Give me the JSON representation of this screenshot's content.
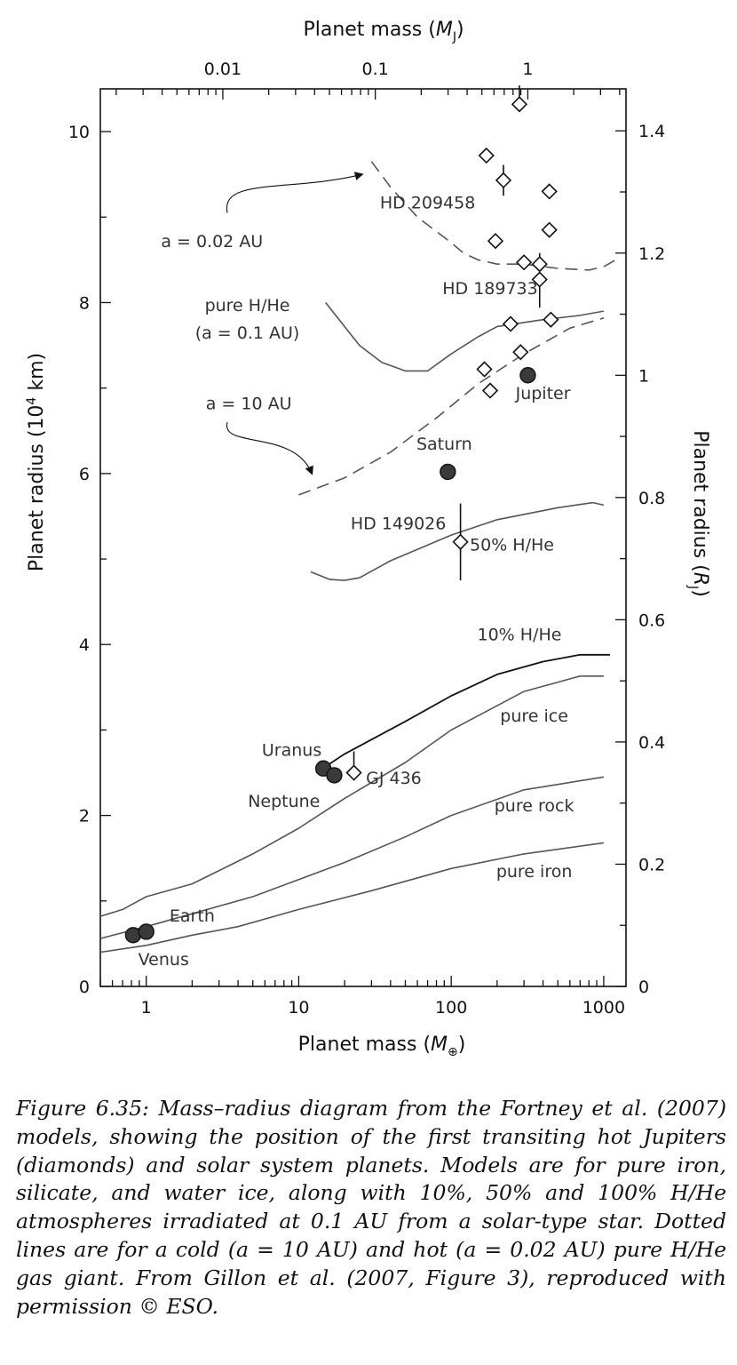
{
  "chart_data": {
    "type": "line",
    "xlabel_bottom_prefix": "Planet mass (",
    "xlabel_bottom_var": "M",
    "xlabel_bottom_sub": "⊕",
    "xlabel_bottom_suffix": ")",
    "xlabel_top_prefix": "Planet mass (",
    "xlabel_top_var": "M",
    "xlabel_top_sub": "J",
    "xlabel_top_suffix": ")",
    "ylabel_left_prefix": "Planet radius  (10",
    "ylabel_left_sup": "4",
    "ylabel_left_suffix": " km)",
    "ylabel_right_prefix": "Planet radius  (",
    "ylabel_right_var": "R",
    "ylabel_right_sub": "J",
    "ylabel_right_suffix": ")",
    "x_scale": "log",
    "xlim": [
      0.5,
      1400
    ],
    "ylim": [
      0,
      10.5
    ],
    "x_bottom_ticks": [
      {
        "v": 1,
        "label": "1"
      },
      {
        "v": 10,
        "label": "10"
      },
      {
        "v": 100,
        "label": "100"
      },
      {
        "v": 1000,
        "label": "1000"
      }
    ],
    "x_top_ticks": [
      {
        "mj": 0.01,
        "label": "0.01"
      },
      {
        "mj": 0.1,
        "label": "0.1"
      },
      {
        "mj": 1,
        "label": "1"
      }
    ],
    "y_left_ticks": [
      {
        "v": 0,
        "label": "0"
      },
      {
        "v": 2,
        "label": "2"
      },
      {
        "v": 4,
        "label": "4"
      },
      {
        "v": 6,
        "label": "6"
      },
      {
        "v": 8,
        "label": "8"
      },
      {
        "v": 10,
        "label": "10"
      }
    ],
    "y_right_ticks": [
      {
        "rj": 0,
        "label": "0"
      },
      {
        "rj": 0.2,
        "label": "0.2"
      },
      {
        "rj": 0.4,
        "label": "0.4"
      },
      {
        "rj": 0.6,
        "label": "0.6"
      },
      {
        "rj": 0.8,
        "label": "0.8"
      },
      {
        "rj": 1,
        "label": "1"
      },
      {
        "rj": 1.2,
        "label": "1.2"
      },
      {
        "rj": 1.4,
        "label": "1.4"
      }
    ],
    "series": [
      {
        "name": "pure iron",
        "style": "solid",
        "color": "#555555",
        "points": [
          [
            0.5,
            0.4
          ],
          [
            1,
            0.48
          ],
          [
            2,
            0.6
          ],
          [
            4,
            0.7
          ],
          [
            10,
            0.9
          ],
          [
            30,
            1.12
          ],
          [
            100,
            1.38
          ],
          [
            300,
            1.55
          ],
          [
            1000,
            1.68
          ]
        ]
      },
      {
        "name": "pure rock",
        "style": "solid",
        "color": "#555555",
        "points": [
          [
            0.5,
            0.56
          ],
          [
            1,
            0.7
          ],
          [
            2,
            0.85
          ],
          [
            5,
            1.05
          ],
          [
            10,
            1.25
          ],
          [
            20,
            1.45
          ],
          [
            50,
            1.75
          ],
          [
            100,
            2.0
          ],
          [
            300,
            2.3
          ],
          [
            1000,
            2.45
          ]
        ]
      },
      {
        "name": "pure ice",
        "style": "solid",
        "color": "#555555",
        "points": [
          [
            0.5,
            0.82
          ],
          [
            0.7,
            0.9
          ],
          [
            1,
            1.05
          ],
          [
            2,
            1.2
          ],
          [
            5,
            1.55
          ],
          [
            10,
            1.85
          ],
          [
            20,
            2.2
          ],
          [
            50,
            2.62
          ],
          [
            100,
            3.0
          ],
          [
            300,
            3.45
          ],
          [
            700,
            3.63
          ],
          [
            1000,
            3.63
          ]
        ]
      },
      {
        "name": "10% H/He",
        "style": "solid",
        "color": "#111111",
        "points": [
          [
            13,
            2.5
          ],
          [
            20,
            2.72
          ],
          [
            50,
            3.1
          ],
          [
            100,
            3.4
          ],
          [
            200,
            3.65
          ],
          [
            400,
            3.8
          ],
          [
            700,
            3.88
          ],
          [
            1100,
            3.88
          ]
        ]
      },
      {
        "name": "50% H/He",
        "style": "solid",
        "color": "#555555",
        "points": [
          [
            12,
            4.85
          ],
          [
            16,
            4.76
          ],
          [
            20,
            4.75
          ],
          [
            25,
            4.78
          ],
          [
            40,
            4.98
          ],
          [
            100,
            5.28
          ],
          [
            200,
            5.46
          ],
          [
            500,
            5.6
          ],
          [
            850,
            5.66
          ],
          [
            1000,
            5.63
          ]
        ]
      },
      {
        "name": "pure H/He (a = 0.1 AU)",
        "style": "solid",
        "color": "#555555",
        "points": [
          [
            15,
            8.0
          ],
          [
            25,
            7.5
          ],
          [
            35,
            7.3
          ],
          [
            50,
            7.2
          ],
          [
            70,
            7.2
          ],
          [
            100,
            7.4
          ],
          [
            150,
            7.6
          ],
          [
            200,
            7.72
          ],
          [
            400,
            7.8
          ],
          [
            700,
            7.85
          ],
          [
            1000,
            7.9
          ]
        ]
      },
      {
        "name": "a = 10 AU",
        "style": "dashed",
        "color": "#555555",
        "points": [
          [
            10,
            5.75
          ],
          [
            20,
            5.95
          ],
          [
            40,
            6.25
          ],
          [
            80,
            6.65
          ],
          [
            150,
            7.05
          ],
          [
            300,
            7.4
          ],
          [
            600,
            7.7
          ],
          [
            1000,
            7.82
          ]
        ]
      },
      {
        "name": "a = 0.02 AU",
        "style": "dashed",
        "color": "#555555",
        "points": [
          [
            30,
            9.65
          ],
          [
            40,
            9.35
          ],
          [
            60,
            9.0
          ],
          [
            100,
            8.7
          ],
          [
            120,
            8.58
          ],
          [
            150,
            8.5
          ],
          [
            200,
            8.45
          ],
          [
            300,
            8.45
          ],
          [
            500,
            8.4
          ],
          [
            800,
            8.38
          ],
          [
            1000,
            8.42
          ],
          [
            1200,
            8.5
          ]
        ]
      }
    ],
    "solar_system": [
      {
        "name": "Venus",
        "x": 0.82,
        "y": 0.6
      },
      {
        "name": "Earth",
        "x": 1.0,
        "y": 0.64
      },
      {
        "name": "Uranus",
        "x": 14.5,
        "y": 2.55
      },
      {
        "name": "Neptune",
        "x": 17.1,
        "y": 2.47
      },
      {
        "name": "Saturn",
        "x": 95,
        "y": 6.02
      },
      {
        "name": "Jupiter",
        "x": 318,
        "y": 7.15
      }
    ],
    "transiting": [
      {
        "x": 280,
        "y": 10.32,
        "err_up": 0.22,
        "err_down": 0.0
      },
      {
        "x": 170,
        "y": 9.72
      },
      {
        "x": 220,
        "y": 9.43,
        "err_up": 0.18,
        "err_down": 0.18
      },
      {
        "x": 440,
        "y": 9.3
      },
      {
        "x": 440,
        "y": 8.85
      },
      {
        "x": 195,
        "y": 8.72
      },
      {
        "x": 300,
        "y": 8.47
      },
      {
        "x": 380,
        "y": 8.45,
        "err_up": 0.13,
        "err_down": 0.0
      },
      {
        "x": 380,
        "y": 8.27,
        "err_up": 0.0,
        "err_down": 0.33
      },
      {
        "x": 245,
        "y": 7.75
      },
      {
        "x": 450,
        "y": 7.8
      },
      {
        "x": 285,
        "y": 7.42
      },
      {
        "x": 165,
        "y": 7.22
      },
      {
        "x": 180,
        "y": 6.97
      },
      {
        "x": 115,
        "y": 5.2,
        "err_up": 0.45,
        "err_down": 0.45
      },
      {
        "x": 23,
        "y": 2.5,
        "err_up": 0.25,
        "err_down": 0.0
      }
    ],
    "annotations": [
      {
        "text": "HD 209458",
        "x": 70,
        "y": 9.1
      },
      {
        "text": "HD 189733",
        "x": 180,
        "y": 8.1
      },
      {
        "text": "a = 0.02 AU",
        "x": 2.7,
        "y": 8.65
      },
      {
        "text": "pure H/He",
        "x": 4.6,
        "y": 7.9
      },
      {
        "text": "(a = 0.1 AU)",
        "x": 4.6,
        "y": 7.58
      },
      {
        "text": "a = 10 AU",
        "x": 4.7,
        "y": 6.75
      },
      {
        "text": "Saturn",
        "x": 90,
        "y": 6.28
      },
      {
        "text": "Jupiter",
        "x": 400,
        "y": 6.87
      },
      {
        "text": "HD 149026",
        "x": 45,
        "y": 5.35
      },
      {
        "text": "50% H/He",
        "x": 250,
        "y": 5.1
      },
      {
        "text": "10% H/He",
        "x": 280,
        "y": 4.05
      },
      {
        "text": "pure ice",
        "x": 350,
        "y": 3.1
      },
      {
        "text": "Uranus",
        "x": 9,
        "y": 2.7
      },
      {
        "text": "GJ 436",
        "x": 42,
        "y": 2.37
      },
      {
        "text": "Neptune",
        "x": 8,
        "y": 2.1
      },
      {
        "text": "pure rock",
        "x": 350,
        "y": 2.05
      },
      {
        "text": "pure iron",
        "x": 350,
        "y": 1.28
      },
      {
        "text": "Earth",
        "x": 2.0,
        "y": 0.76
      },
      {
        "text": "Venus",
        "x": 1.3,
        "y": 0.25
      }
    ]
  },
  "caption": "Figure 6.35: Mass–radius diagram from the Fortney et al. (2007) models, showing the position of the first transiting hot Jupiters (diamonds) and solar system planets. Models are for pure iron, silicate, and water ice, along with 10%, 50% and 100% H/He atmospheres irradiated at 0.1 AU from a solar-type star. Dotted lines are for a cold (a = 10 AU) and hot (a = 0.02 AU) pure H/He gas giant. From Gillon et al. (2007, Figure 3), reproduced with permission © ESO."
}
